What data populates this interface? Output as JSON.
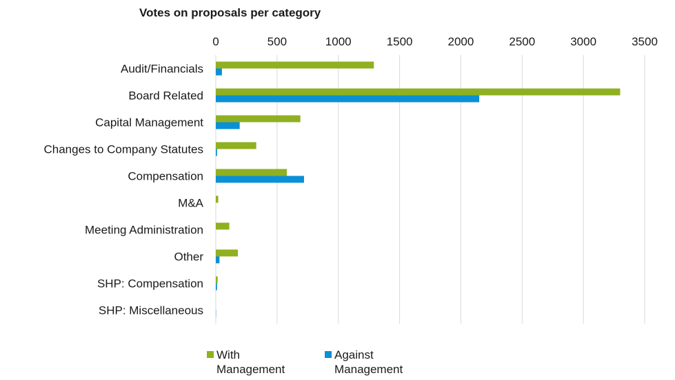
{
  "chart_data": {
    "type": "bar",
    "orientation": "horizontal",
    "title": "Votes on proposals per category",
    "xlabel": "",
    "ylabel": "",
    "xlim": [
      0,
      3500
    ],
    "x_ticks": [
      0,
      500,
      1000,
      1500,
      2000,
      2500,
      3000,
      3500
    ],
    "x_axis_position": "top",
    "grid": true,
    "legend_position": "bottom",
    "categories": [
      "Audit/Financials",
      "Board Related",
      "Capital Management",
      "Changes to Company Statutes",
      "Compensation",
      "M&A",
      "Meeting Administration",
      "Other",
      "SHP: Compensation",
      "SHP: Miscellaneous"
    ],
    "series": [
      {
        "name": "With Management",
        "color": "#8fb021",
        "values": [
          1290,
          3300,
          690,
          330,
          580,
          20,
          110,
          180,
          15,
          0
        ]
      },
      {
        "name": "Against Management",
        "color": "#0b90d6",
        "values": [
          50,
          2150,
          195,
          10,
          720,
          0,
          0,
          30,
          10,
          2
        ]
      }
    ]
  },
  "legend": {
    "items": [
      {
        "label": "With Management",
        "color": "#8fb021"
      },
      {
        "label": "Against Management",
        "color": "#0b90d6"
      }
    ]
  }
}
